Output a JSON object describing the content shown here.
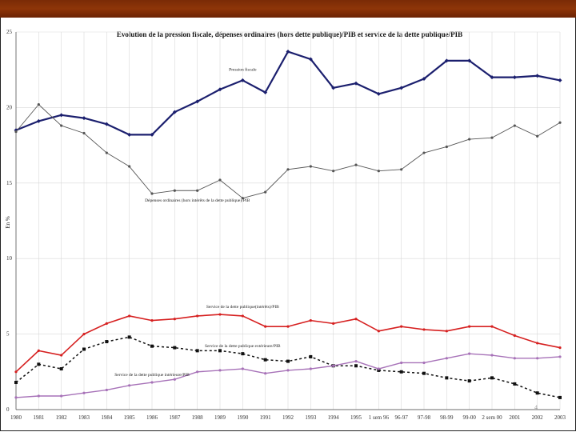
{
  "chart_data": {
    "type": "line",
    "title": "Evolution de la pression fiscale, dépenses ordinaires (hors dette publique)/PIB et service de la dette publique/PIB",
    "xlabel": "",
    "ylabel": "En %",
    "ylim": [
      0,
      25
    ],
    "yticks": [
      0,
      5,
      10,
      15,
      20,
      25
    ],
    "categories": [
      "1980",
      "1981",
      "1982",
      "1983",
      "1984",
      "1985",
      "1986",
      "1987",
      "1988",
      "1989",
      "1990",
      "1991",
      "1992",
      "1993",
      "1994",
      "1995",
      "1 sem 96",
      "96-97",
      "97-98",
      "98-99",
      "99-00",
      "2 sem 00",
      "2001",
      "2002",
      "2003"
    ],
    "grid": true,
    "series": [
      {
        "name": "Pression fiscale",
        "color": "#1b1f6e",
        "width": 2.2,
        "dash": "",
        "marker": "diamond",
        "values": [
          18.5,
          19.1,
          19.5,
          19.3,
          18.9,
          18.2,
          18.2,
          19.7,
          20.4,
          21.2,
          21.8,
          21.0,
          23.7,
          23.2,
          21.3,
          21.6,
          20.9,
          21.3,
          21.9,
          23.1,
          23.1,
          22.0,
          22.0,
          22.1,
          21.8
        ],
        "label_at": 10
      },
      {
        "name": "Dépenses ordinaires (hors intérêts de la dette publique)/PIB",
        "color": "#555555",
        "width": 0.9,
        "dash": "",
        "marker": "dot",
        "values": [
          18.4,
          20.2,
          18.8,
          18.3,
          17.0,
          16.1,
          14.3,
          14.5,
          14.5,
          15.2,
          14.0,
          14.4,
          15.9,
          16.1,
          15.8,
          16.2,
          15.8,
          15.9,
          17.0,
          17.4,
          17.9,
          18.0,
          18.8,
          18.1,
          19.0
        ],
        "label_at": 8
      },
      {
        "name": "Service de la dette publique(intérêts)/PIB",
        "color": "#d62020",
        "width": 1.6,
        "dash": "",
        "marker": "dot",
        "values": [
          2.5,
          3.9,
          3.6,
          5.0,
          5.7,
          6.2,
          5.9,
          6.0,
          6.2,
          6.3,
          6.2,
          5.5,
          5.5,
          5.9,
          5.7,
          6.0,
          5.2,
          5.5,
          5.3,
          5.2,
          5.5,
          5.5,
          4.9,
          4.4,
          4.1
        ],
        "label_at": 10
      },
      {
        "name": "Service de la dette publique extérieure/PIB",
        "color": "#111111",
        "width": 1.5,
        "dash": "3,3",
        "marker": "square",
        "values": [
          1.8,
          3.0,
          2.7,
          4.0,
          4.5,
          4.8,
          4.2,
          4.1,
          3.9,
          3.9,
          3.7,
          3.3,
          3.2,
          3.5,
          2.9,
          2.9,
          2.6,
          2.5,
          2.4,
          2.1,
          1.9,
          2.1,
          1.7,
          1.1,
          0.8
        ],
        "label_at": 10
      },
      {
        "name": "Service de la dette publique intérieure/PIB",
        "color": "#a772b8",
        "width": 1.4,
        "dash": "",
        "marker": "dot",
        "values": [
          0.8,
          0.9,
          0.9,
          1.1,
          1.3,
          1.6,
          1.8,
          2.0,
          2.5,
          2.6,
          2.7,
          2.4,
          2.6,
          2.7,
          2.9,
          3.2,
          2.7,
          3.1,
          3.1,
          3.4,
          3.7,
          3.6,
          3.4,
          3.4,
          3.5
        ],
        "label_at": 6
      }
    ]
  },
  "footer": {
    "page_number": "4"
  }
}
